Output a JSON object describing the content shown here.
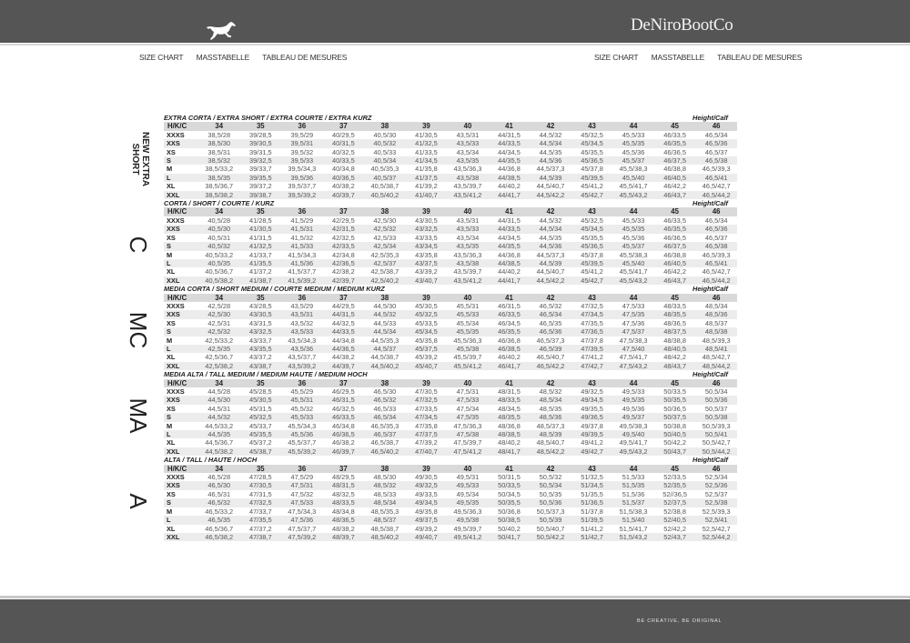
{
  "header": {
    "brand": "DeNiroBootCo",
    "logo_icon": "horse-icon",
    "nav_left": [
      "SIZE CHART",
      "MASSTABELLE",
      "TABLEAU DE MESURES"
    ],
    "nav_right": [
      "SIZE CHART",
      "MASSTABELLE",
      "TABLEAU DE MESURES"
    ]
  },
  "footer": {
    "slogan": "BE CREATIVE, BE ORIGINAL"
  },
  "table": {
    "corner_label": "H/K/C",
    "height_calf_label": "Height/Calf",
    "columns": [
      "34",
      "35",
      "36",
      "37",
      "38",
      "39",
      "40",
      "41",
      "42",
      "43",
      "44",
      "45",
      "46"
    ],
    "sections": [
      {
        "title": "EXTRA CORTA / EXTRA SHORT / EXTRA COURTE / EXTRA KURZ",
        "side_label": "NEW EXTRA SHORT",
        "rows": [
          [
            "XXXS",
            "38,5/28",
            "39/28,5",
            "39,5/29",
            "40/29,5",
            "40,5/30",
            "41/30,5",
            "43,5/31",
            "44/31,5",
            "44,5/32",
            "45/32,5",
            "45,5/33",
            "46/33,5",
            "46,5/34"
          ],
          [
            "XXS",
            "38,5/30",
            "39/30,5",
            "39,5/31",
            "40/31,5",
            "40,5/32",
            "41/32,5",
            "43,5/33",
            "44/33,5",
            "44,5/34",
            "45/34,5",
            "45,5/35",
            "46/35,5",
            "46,5/36"
          ],
          [
            "XS",
            "38,5/31",
            "39/31,5",
            "39,5/32",
            "40/32,5",
            "40,5/33",
            "41/33,5",
            "43,5/34",
            "44/34,5",
            "44,5/35",
            "45/35,5",
            "45,5/36",
            "46/36,5",
            "46,5/37"
          ],
          [
            "S",
            "38,5/32",
            "39/32,5",
            "39,5/33",
            "40/33,5",
            "40,5/34",
            "41/34,5",
            "43,5/35",
            "44/35,5",
            "44,5/36",
            "45/36,5",
            "45,5/37",
            "46/37,5",
            "46,5/38"
          ],
          [
            "M",
            "38,5/33,2",
            "39/33,7",
            "39,5/34,3",
            "40/34,8",
            "40,5/35,3",
            "41/35,8",
            "43,5/36,3",
            "44/36,8",
            "44,5/37,3",
            "45/37,8",
            "45,5/38,3",
            "46/38,8",
            "46,5/39,3"
          ],
          [
            "L",
            "38,5/35",
            "39/35,5",
            "39,5/36",
            "40/36,5",
            "40,5/37",
            "41/37,5",
            "43,5/38",
            "44/38,5",
            "44,5/39",
            "45/39,5",
            "45,5/40",
            "46/40,5",
            "46,5/41"
          ],
          [
            "XL",
            "38,5/36,7",
            "39/37,2",
            "39,5/37,7",
            "40/38,2",
            "40,5/38,7",
            "41/39,2",
            "43,5/39,7",
            "44/40,2",
            "44,5/40,7",
            "45/41,2",
            "45,5/41,7",
            "46/42,2",
            "46,5/42,7"
          ],
          [
            "XXL",
            "38,5/38,2",
            "39/38,7",
            "39,5/39,2",
            "40/39,7",
            "40,5/40,2",
            "41/40,7",
            "43,5/41,2",
            "44/41,7",
            "44,5/42,2",
            "45/42,7",
            "45,5/43,2",
            "46/43,7",
            "46,5/44,2"
          ]
        ]
      },
      {
        "title": "CORTA / SHORT / COURTE / KURZ",
        "side_label": "C",
        "rows": [
          [
            "XXXS",
            "40,5/28",
            "41/28,5",
            "41,5/29",
            "42/29,5",
            "42,5/30",
            "43/30,5",
            "43,5/31",
            "44/31,5",
            "44,5/32",
            "45/32,5",
            "45,5/33",
            "46/33,5",
            "46,5/34"
          ],
          [
            "XXS",
            "40,5/30",
            "41/30,5",
            "41,5/31",
            "42/31,5",
            "42,5/32",
            "43/32,5",
            "43,5/33",
            "44/33,5",
            "44,5/34",
            "45/34,5",
            "45,5/35",
            "46/35,5",
            "46,5/36"
          ],
          [
            "XS",
            "40,5/31",
            "41/31,5",
            "41,5/32",
            "42/32,5",
            "42,5/33",
            "43/33,5",
            "43,5/34",
            "44/34,5",
            "44,5/35",
            "45/35,5",
            "45,5/36",
            "46/36,5",
            "46,5/37"
          ],
          [
            "S",
            "40,5/32",
            "41/32,5",
            "41,5/33",
            "42/33,5",
            "42,5/34",
            "43/34,5",
            "43,5/35",
            "44/35,5",
            "44,5/36",
            "45/36,5",
            "45,5/37",
            "46/37,5",
            "46,5/38"
          ],
          [
            "M",
            "40,5/33,2",
            "41/33,7",
            "41,5/34,3",
            "42/34,8",
            "42,5/35,3",
            "43/35,8",
            "43,5/36,3",
            "44/36,8",
            "44,5/37,3",
            "45/37,8",
            "45,5/38,3",
            "46/38,8",
            "46,5/39,3"
          ],
          [
            "L",
            "40,5/35",
            "41/35,5",
            "41,5/36",
            "42/36,5",
            "42,5/37",
            "43/37,5",
            "43,5/38",
            "44/38,5",
            "44,5/39",
            "45/39,5",
            "45,5/40",
            "46/40,5",
            "46,5/41"
          ],
          [
            "XL",
            "40,5/36,7",
            "41/37,2",
            "41,5/37,7",
            "42/38,2",
            "42,5/38,7",
            "43/39,2",
            "43,5/39,7",
            "44/40,2",
            "44,5/40,7",
            "45/41,2",
            "45,5/41,7",
            "46/42,2",
            "46,5/42,7"
          ],
          [
            "XXL",
            "40,5/38,2",
            "41/38,7",
            "41,5/39,2",
            "42/39,7",
            "42,5/40,2",
            "43/40,7",
            "43,5/41,2",
            "44/41,7",
            "44,5/42,2",
            "45/42,7",
            "45,5/43,2",
            "46/43,7",
            "46,5/44,2"
          ]
        ]
      },
      {
        "title": "MEDIA CORTA / SHORT MEDIUM / COURTE MEDIUM / MEDIUM KURZ",
        "side_label": "MC",
        "rows": [
          [
            "XXXS",
            "42,5/28",
            "43/28,5",
            "43,5/29",
            "44/29,5",
            "44,5/30",
            "45/30,5",
            "45,5/31",
            "46/31,5",
            "46,5/32",
            "47/32,5",
            "47,5/33",
            "48/33,5",
            "48,5/34"
          ],
          [
            "XXS",
            "42,5/30",
            "43/30,5",
            "43,5/31",
            "44/31,5",
            "44,5/32",
            "45/32,5",
            "45,5/33",
            "46/33,5",
            "46,5/34",
            "47/34,5",
            "47,5/35",
            "48/35,5",
            "48,5/36"
          ],
          [
            "XS",
            "42,5/31",
            "43/31,5",
            "43,5/32",
            "44/32,5",
            "44,5/33",
            "45/33,5",
            "45,5/34",
            "46/34,5",
            "46,5/35",
            "47/35,5",
            "47,5/36",
            "48/36,5",
            "48,5/37"
          ],
          [
            "S",
            "42,5/32",
            "43/32,5",
            "43,5/33",
            "44/33,5",
            "44,5/34",
            "45/34,5",
            "45,5/35",
            "46/35,5",
            "46,5/36",
            "47/36,5",
            "47,5/37",
            "48/37,5",
            "48,5/38"
          ],
          [
            "M",
            "42,5/33,2",
            "43/33,7",
            "43,5/34,3",
            "44/34,8",
            "44,5/35,3",
            "45/35,8",
            "45,5/36,3",
            "46/36,8",
            "46,5/37,3",
            "47/37,8",
            "47,5/38,3",
            "48/38,8",
            "48,5/39,3"
          ],
          [
            "L",
            "42,5/35",
            "43/35,5",
            "43,5/36",
            "44/36,5",
            "44,5/37",
            "45/37,5",
            "45,5/38",
            "46/38,5",
            "46,5/39",
            "47/39,5",
            "47,5/40",
            "48/40,5",
            "48,5/41"
          ],
          [
            "XL",
            "42,5/36,7",
            "43/37,2",
            "43,5/37,7",
            "44/38,2",
            "44,5/38,7",
            "45/39,2",
            "45,5/39,7",
            "46/40,2",
            "46,5/40,7",
            "47/41,2",
            "47,5/41,7",
            "48/42,2",
            "48,5/42,7"
          ],
          [
            "XXL",
            "42,5/38,2",
            "43/38,7",
            "43,5/39,2",
            "44/39,7",
            "44,5/40,2",
            "45/40,7",
            "45,5/41,2",
            "46/41,7",
            "46,5/42,2",
            "47/42,7",
            "47,5/43,2",
            "48/43,7",
            "48,5/44,2"
          ]
        ]
      },
      {
        "title": "MEDIA ALTA / TALL MEDIUM / MEDIUM HAUTE / MEDIUM HOCH",
        "side_label": "MA",
        "rows": [
          [
            "XXXS",
            "44,5/28",
            "45/28,5",
            "45,5/29",
            "46/29,5",
            "46,5/30",
            "47/30,5",
            "47,5/31",
            "48/31,5",
            "48,5/32",
            "49/32,5",
            "49,5/33",
            "50/33,5",
            "50,5/34"
          ],
          [
            "XXS",
            "44,5/30",
            "45/30,5",
            "45,5/31",
            "46/31,5",
            "46,5/32",
            "47/32,5",
            "47,5/33",
            "48/33,5",
            "48,5/34",
            "49/34,5",
            "49,5/35",
            "50/35,5",
            "50,5/36"
          ],
          [
            "XS",
            "44,5/31",
            "45/31,5",
            "45,5/32",
            "46/32,5",
            "46,5/33",
            "47/33,5",
            "47,5/34",
            "48/34,5",
            "48,5/35",
            "49/35,5",
            "49,5/36",
            "50/36,5",
            "50,5/37"
          ],
          [
            "S",
            "44,5/32",
            "45/32,5",
            "45,5/33",
            "46/33,5",
            "46,5/34",
            "47/34,5",
            "47,5/35",
            "48/35,5",
            "48,5/36",
            "49/36,5",
            "49,5/37",
            "50/37,5",
            "50,5/38"
          ],
          [
            "M",
            "44,5/33,2",
            "45/33,7",
            "45,5/34,3",
            "46/34,8",
            "46,5/35,3",
            "47/35,8",
            "47,5/36,3",
            "48/36,8",
            "48,5/37,3",
            "49/37,8",
            "49,5/38,3",
            "50/38,8",
            "50,5/39,3"
          ],
          [
            "L",
            "44,5/35",
            "45/35,5",
            "45,5/36",
            "46/36,5",
            "46,5/37",
            "47/37,5",
            "47,5/38",
            "48/38,5",
            "48,5/39",
            "49/39,5",
            "49,5/40",
            "50/40,5",
            "50,5/41"
          ],
          [
            "XL",
            "44,5/36,7",
            "45/37,2",
            "45,5/37,7",
            "46/38,2",
            "46,5/38,7",
            "47/39,2",
            "47,5/39,7",
            "48/40,2",
            "48,5/40,7",
            "49/41,2",
            "49,5/41,7",
            "50/42,2",
            "50,5/42,7"
          ],
          [
            "XXL",
            "44,5/38,2",
            "45/38,7",
            "45,5/39,2",
            "46/39,7",
            "46,5/40,2",
            "47/40,7",
            "47,5/41,2",
            "48/41,7",
            "48,5/42,2",
            "49/42,7",
            "49,5/43,2",
            "50/43,7",
            "50,5/44,2"
          ]
        ]
      },
      {
        "title": "ALTA / TALL / HAUTE / HOCH",
        "side_label": "A",
        "rows": [
          [
            "XXXS",
            "46,5/28",
            "47/28,5",
            "47,5/29",
            "48/29,5",
            "48,5/30",
            "49/30,5",
            "49,5/31",
            "50/31,5",
            "50,5/32",
            "51/32,5",
            "51,5/33",
            "52/33,5",
            "52,5/34"
          ],
          [
            "XXS",
            "46,5/30",
            "47/30,5",
            "47,5/31",
            "48/31,5",
            "48,5/32",
            "49/32,5",
            "49,5/33",
            "50/33,5",
            "50,5/34",
            "51/34,5",
            "51,5/35",
            "52/35,5",
            "52,5/36"
          ],
          [
            "XS",
            "46,5/31",
            "47/31,5",
            "47,5/32",
            "48/32,5",
            "48,5/33",
            "49/33,5",
            "49,5/34",
            "50/34,5",
            "50,5/35",
            "51/35,5",
            "51,5/36",
            "52//36,5",
            "52,5/37"
          ],
          [
            "S",
            "46,5/32",
            "47/32,5",
            "47,5/33",
            "48/33,5",
            "48,5/34",
            "49/34,5",
            "49,5/35",
            "50/35,5",
            "50,5/36",
            "51/36,5",
            "51,5/37",
            "52/37,5",
            "52,5/38"
          ],
          [
            "M",
            "46,5/33,2",
            "47/33,7",
            "47,5/34,3",
            "48/34,8",
            "48,5/35,3",
            "49/35,8",
            "49,5/36,3",
            "50/36,8",
            "50,5/37,3",
            "51/37,8",
            "51,5/38,3",
            "52/38,8",
            "52,5/39,3"
          ],
          [
            "L",
            "46,5/35",
            "47/35,5",
            "47,5/36",
            "48/36,5",
            "48,5/37",
            "49/37,5",
            "49,5/38",
            "50/38,5",
            "50,5/39",
            "51/39,5",
            "51,5/40",
            "52/40,5",
            "52,5/41"
          ],
          [
            "XL",
            "46,5/36,7",
            "47/37,2",
            "47,5/37,7",
            "48/38,2",
            "48,5/38,7",
            "49/39,2",
            "49,5/39,7",
            "50/40,2",
            "50,5/40,7",
            "51/41,2",
            "51,5/41,7",
            "52/42,2",
            "52,5/42,7"
          ],
          [
            "XXL",
            "46,5/38,2",
            "47/38,7",
            "47,5/39,2",
            "48/39,7",
            "48,5/40,2",
            "49/40,7",
            "49,5/41,2",
            "50/41,7",
            "50,5/42,2",
            "51/42,7",
            "51,5/43,2",
            "52/43,7",
            "52,5/44,2"
          ]
        ]
      }
    ]
  },
  "colors": {
    "band": "#555555",
    "header_row": "#d9d9d9",
    "alt_row": "#ececec"
  }
}
